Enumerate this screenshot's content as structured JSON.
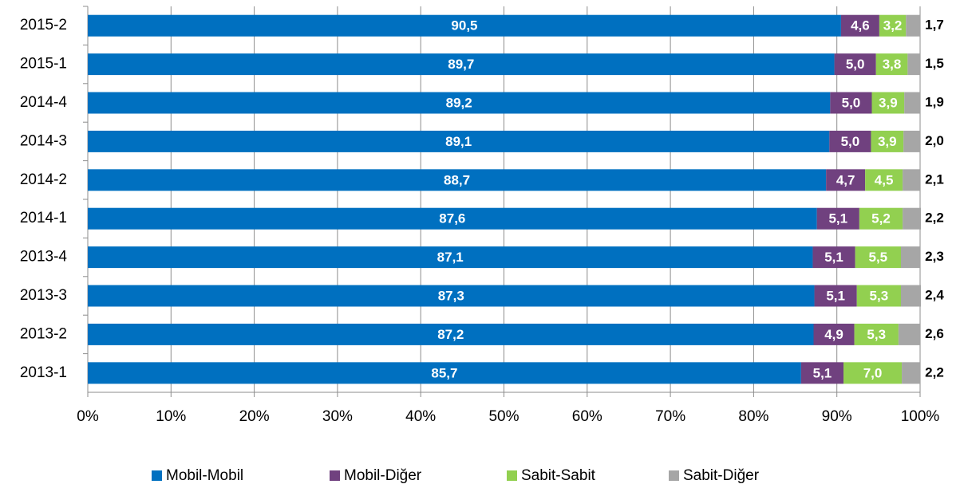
{
  "chart_data": {
    "type": "stacked-barh",
    "categories": [
      "2015-2",
      "2015-1",
      "2014-4",
      "2014-3",
      "2014-2",
      "2014-1",
      "2013-4",
      "2013-3",
      "2013-2",
      "2013-1"
    ],
    "series": [
      {
        "name": "Mobil-Mobil",
        "color": "#0070c0",
        "values": [
          90.5,
          89.7,
          89.2,
          89.1,
          88.7,
          87.6,
          87.1,
          87.3,
          87.2,
          85.7
        ],
        "value_labels": [
          "90,5",
          "89,7",
          "89,2",
          "89,1",
          "88,7",
          "87,6",
          "87,1",
          "87,3",
          "87,2",
          "85,7"
        ]
      },
      {
        "name": "Mobil-Diğer",
        "color": "#70417f",
        "values": [
          4.6,
          5.0,
          5.0,
          5.0,
          4.7,
          5.1,
          5.1,
          5.1,
          4.9,
          5.1
        ],
        "value_labels": [
          "4,6",
          "5,0",
          "5,0",
          "5,0",
          "4,7",
          "5,1",
          "5,1",
          "5,1",
          "4,9",
          "5,1"
        ]
      },
      {
        "name": "Sabit-Sabit",
        "color": "#92d050",
        "values": [
          3.2,
          3.8,
          3.9,
          3.9,
          4.5,
          5.2,
          5.5,
          5.3,
          5.3,
          7.0
        ],
        "value_labels": [
          "3,2",
          "3,8",
          "3,9",
          "3,9",
          "4,5",
          "5,2",
          "5,5",
          "5,3",
          "5,3",
          "7,0"
        ]
      },
      {
        "name": "Sabit-Diğer",
        "color": "#a6a6a6",
        "values": [
          1.7,
          1.5,
          1.9,
          2.0,
          2.1,
          2.2,
          2.3,
          2.4,
          2.6,
          2.2
        ],
        "value_labels": [
          "1,7",
          "1,5",
          "1,9",
          "2,0",
          "2,1",
          "2,2",
          "2,3",
          "2,4",
          "2,6",
          "2,2"
        ]
      }
    ],
    "xlim": [
      0,
      100
    ],
    "xticks": [
      {
        "value": 0,
        "label": "0%"
      },
      {
        "value": 10,
        "label": "10%"
      },
      {
        "value": 20,
        "label": "20%"
      },
      {
        "value": 30,
        "label": "30%"
      },
      {
        "value": 40,
        "label": "40%"
      },
      {
        "value": 50,
        "label": "50%"
      },
      {
        "value": 60,
        "label": "60%"
      },
      {
        "value": 70,
        "label": "70%"
      },
      {
        "value": 80,
        "label": "80%"
      },
      {
        "value": 90,
        "label": "90%"
      },
      {
        "value": 100,
        "label": "100%"
      }
    ],
    "grid": true,
    "legend": "bottom"
  }
}
